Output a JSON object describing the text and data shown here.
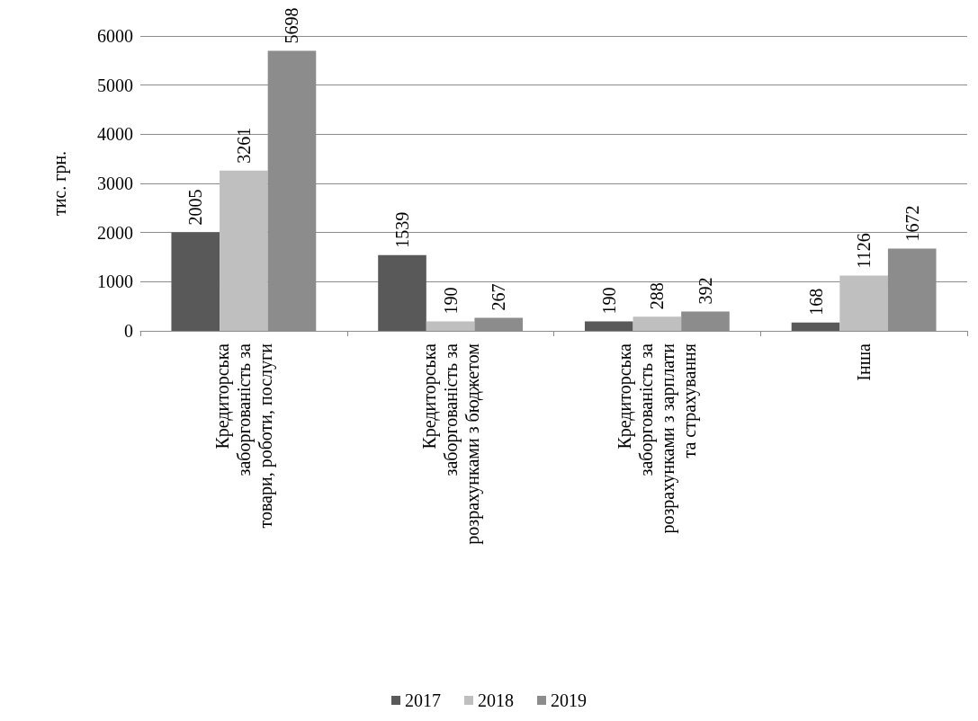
{
  "chart_data": {
    "type": "bar",
    "ylabel": "тис. грн.",
    "categories": [
      "Кредиторська заборгованість за товари, роботи, послуги",
      "Кредиторська заборгованість за розрахунками з бюджетом",
      "Кредиторська заборгованість за розрахунками з зарплати та страхування",
      "Інша"
    ],
    "series": [
      {
        "name": "2017",
        "color": "#595959",
        "values": [
          2005,
          1539,
          190,
          168
        ]
      },
      {
        "name": "2018",
        "color": "#bfbfbf",
        "values": [
          3261,
          190,
          288,
          1126
        ]
      },
      {
        "name": "2019",
        "color": "#8c8c8c",
        "values": [
          5698,
          267,
          392,
          1672
        ]
      }
    ],
    "ylim": [
      0,
      6000
    ],
    "yticks": [
      0,
      1000,
      2000,
      3000,
      4000,
      5000,
      6000
    ],
    "grid": "y",
    "legend": "bottom",
    "data_labels": true
  }
}
